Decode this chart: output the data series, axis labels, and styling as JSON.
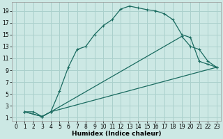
{
  "xlabel": "Humidex (Indice chaleur)",
  "bg_color": "#cce8e4",
  "grid_color": "#aad0cc",
  "line_color": "#1a6b60",
  "xlim": [
    -0.5,
    23.5
  ],
  "ylim": [
    0.5,
    20.5
  ],
  "xticks": [
    0,
    1,
    2,
    3,
    4,
    5,
    6,
    7,
    8,
    9,
    10,
    11,
    12,
    13,
    14,
    15,
    16,
    17,
    18,
    19,
    20,
    21,
    22,
    23
  ],
  "yticks": [
    1,
    3,
    5,
    7,
    9,
    11,
    13,
    15,
    17,
    19
  ],
  "line1_x": [
    1,
    2,
    3,
    4,
    5,
    6,
    7,
    8,
    9,
    10,
    11,
    12,
    13,
    14,
    15,
    16,
    17,
    18,
    19,
    20,
    21,
    22,
    23
  ],
  "line1_y": [
    2,
    2,
    1.2,
    2,
    5.5,
    9.5,
    12.5,
    13,
    15,
    16.5,
    17.5,
    19.3,
    19.8,
    19.5,
    19.2,
    19,
    18.5,
    17.5,
    15,
    14.5,
    10.5,
    10,
    9.5
  ],
  "line2_x": [
    1,
    3,
    4,
    19,
    20,
    21,
    22,
    23
  ],
  "line2_y": [
    2,
    1.2,
    2,
    14.7,
    13,
    12.5,
    10.5,
    9.5
  ],
  "line3_x": [
    1,
    3,
    4,
    23
  ],
  "line3_y": [
    2,
    1.2,
    2,
    9.5
  ]
}
